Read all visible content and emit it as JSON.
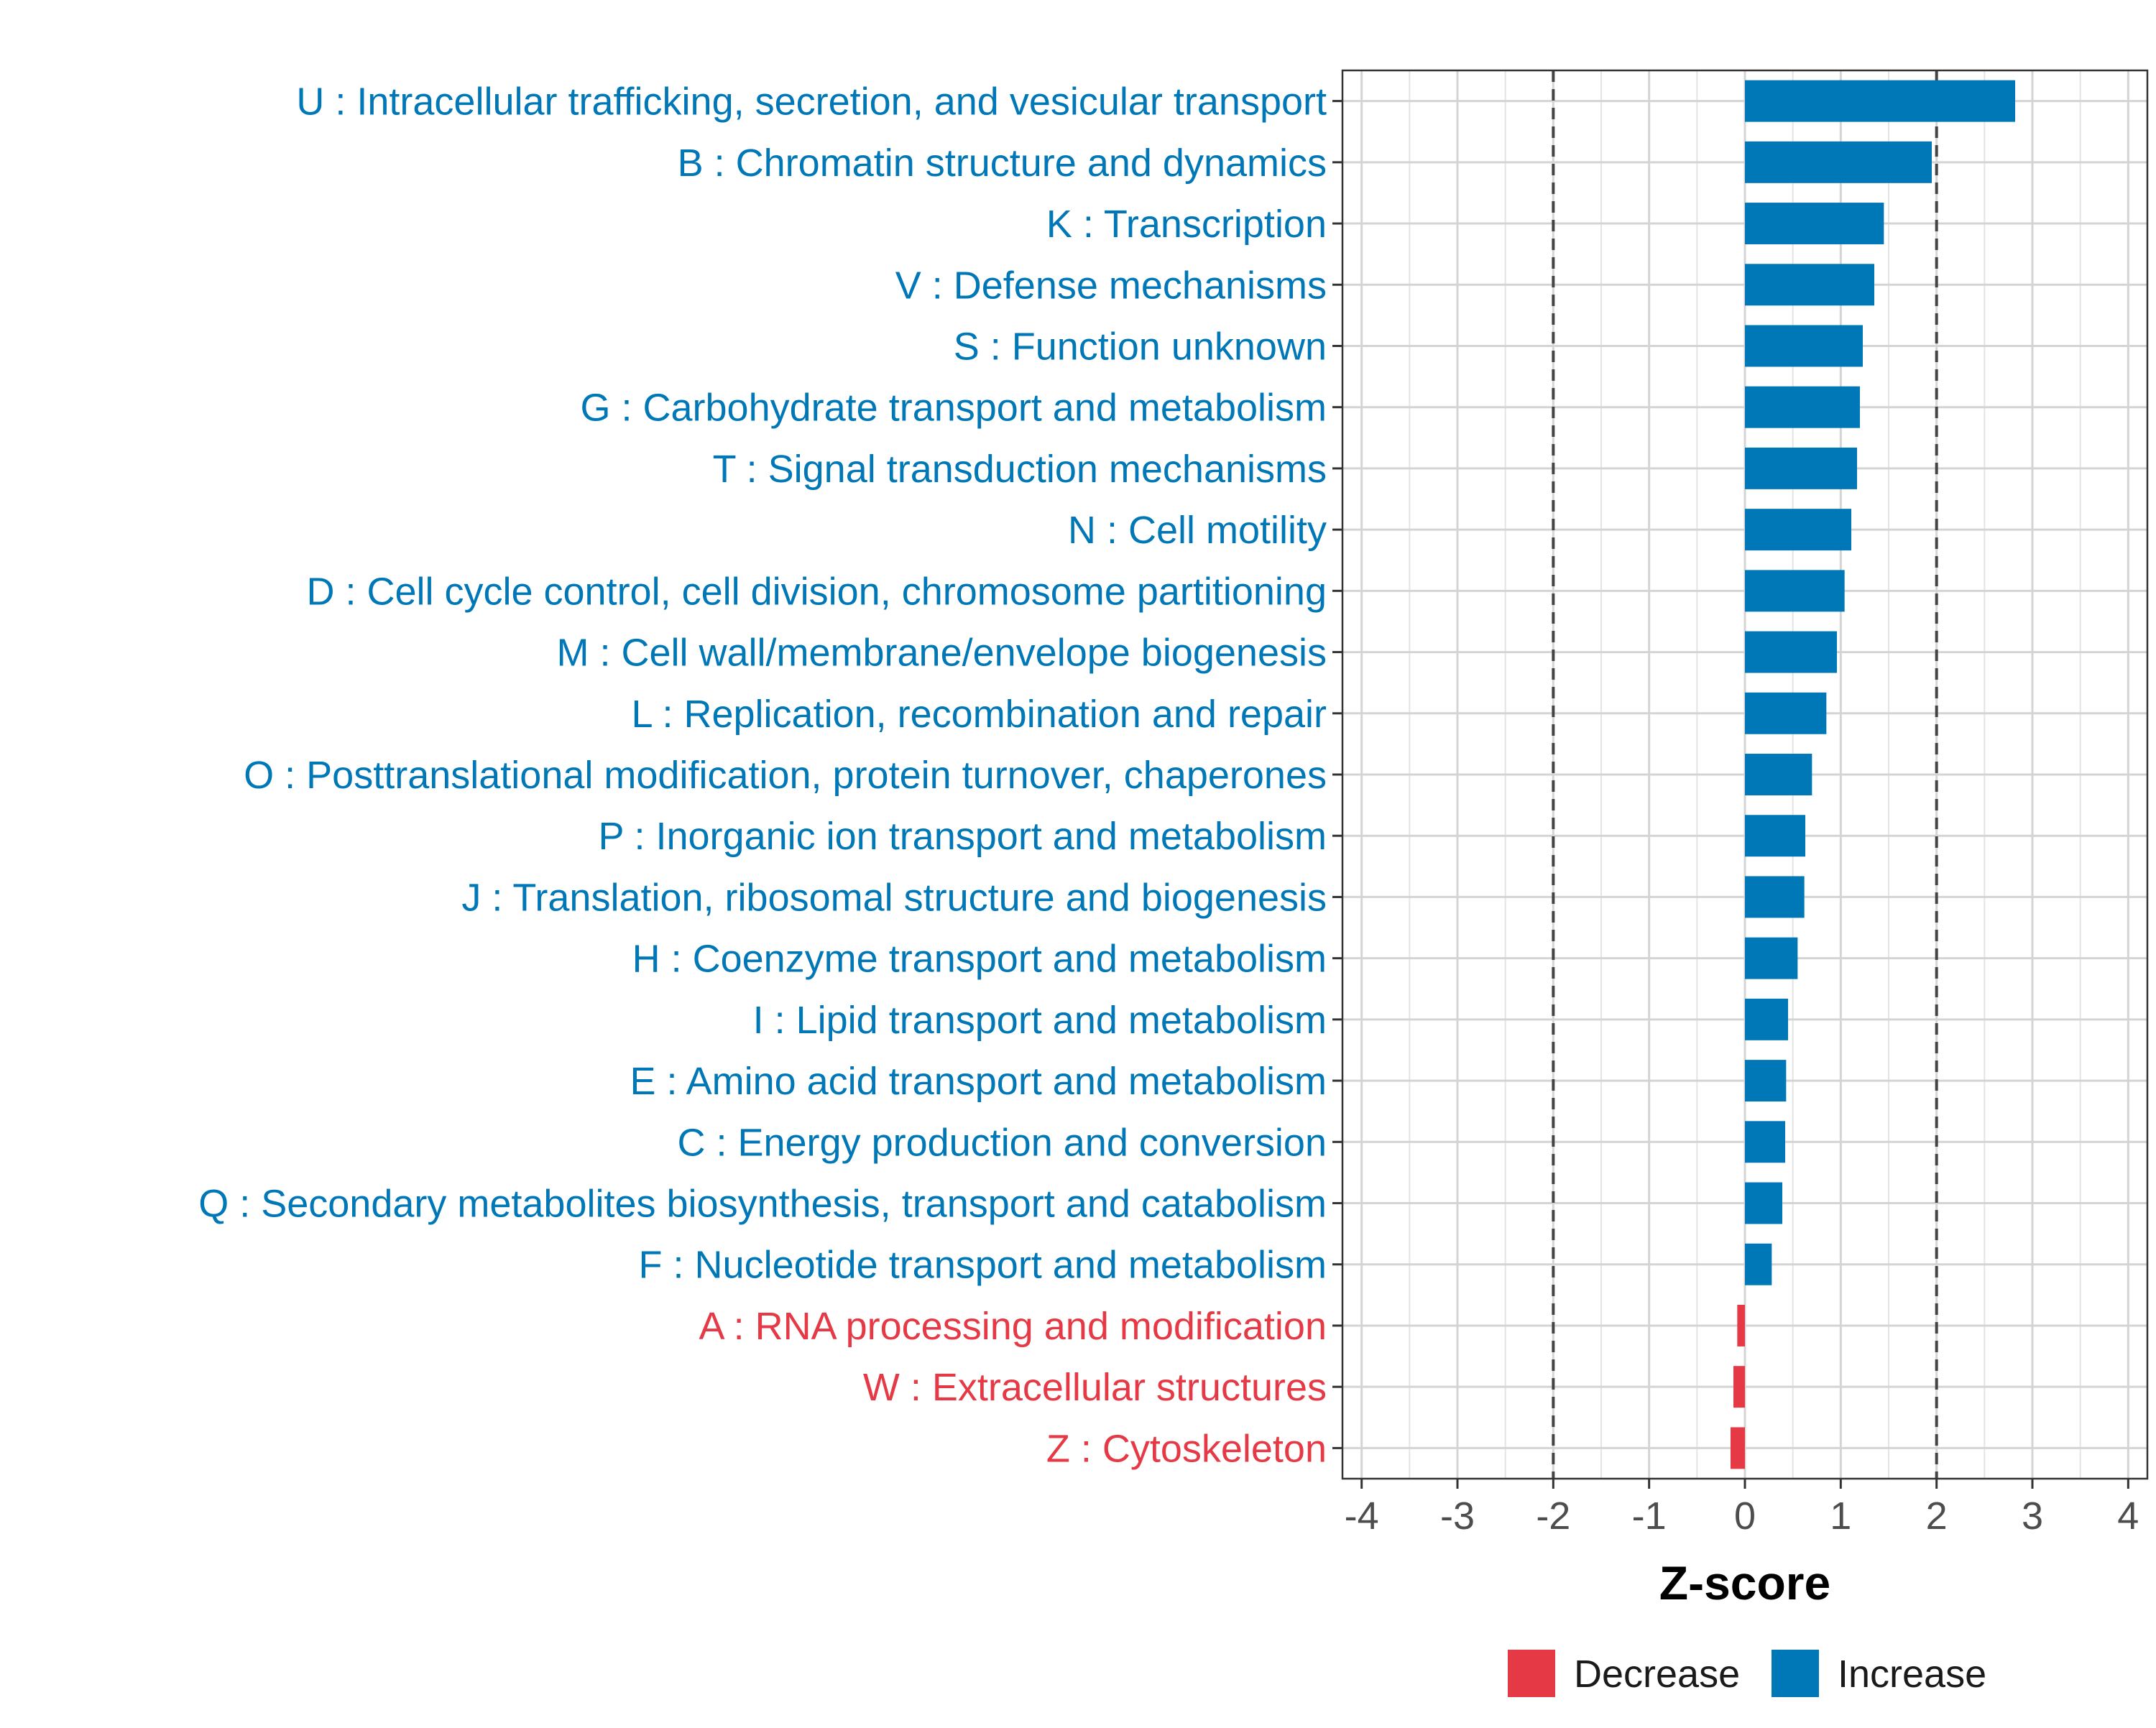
{
  "chart_data": {
    "type": "bar",
    "orientation": "horizontal",
    "title": "",
    "xlabel": "Z-score",
    "ylabel": "",
    "xlim": [
      -4.2,
      4.2
    ],
    "xticks": [
      -4,
      -3,
      -2,
      -1,
      0,
      1,
      2,
      3,
      4
    ],
    "xtick_labels": [
      "-4",
      "-3",
      "-2",
      "-1",
      "0",
      "1",
      "2",
      "3",
      "4"
    ],
    "threshold_lines": [
      -2,
      2
    ],
    "grid": true,
    "colors": {
      "Decrease": "#e63946",
      "Increase": "#0077b6"
    },
    "legend": {
      "placement": "bottom-center",
      "entries": [
        {
          "name": "Decrease",
          "color": "#e63946"
        },
        {
          "name": "Increase",
          "color": "#0077b6"
        }
      ]
    },
    "categories": [
      "U : Intracellular trafficking, secretion, and vesicular transport",
      "B : Chromatin structure and dynamics",
      "K : Transcription",
      "V : Defense mechanisms",
      "S : Function unknown",
      "G : Carbohydrate transport and metabolism",
      "T : Signal transduction mechanisms",
      "N : Cell motility",
      "D : Cell cycle control, cell division, chromosome partitioning",
      "M : Cell wall/membrane/envelope biogenesis",
      "L : Replication, recombination and repair",
      "O : Posttranslational modification, protein turnover, chaperones",
      "P : Inorganic ion transport and metabolism",
      "J : Translation, ribosomal structure and biogenesis",
      "H : Coenzyme transport and metabolism",
      "I : Lipid transport and metabolism",
      "E : Amino acid transport and metabolism",
      "C : Energy production and conversion",
      "Q : Secondary metabolites biosynthesis, transport and catabolism",
      "F : Nucleotide transport and metabolism",
      "A : RNA processing and modification",
      "W : Extracellular structures",
      "Z : Cytoskeleton"
    ],
    "values": [
      2.82,
      1.95,
      1.45,
      1.35,
      1.23,
      1.2,
      1.17,
      1.11,
      1.04,
      0.96,
      0.85,
      0.7,
      0.63,
      0.62,
      0.55,
      0.45,
      0.43,
      0.42,
      0.39,
      0.28,
      -0.08,
      -0.12,
      -0.15
    ],
    "groups": [
      "Increase",
      "Increase",
      "Increase",
      "Increase",
      "Increase",
      "Increase",
      "Increase",
      "Increase",
      "Increase",
      "Increase",
      "Increase",
      "Increase",
      "Increase",
      "Increase",
      "Increase",
      "Increase",
      "Increase",
      "Increase",
      "Increase",
      "Increase",
      "Decrease",
      "Decrease",
      "Decrease"
    ]
  }
}
